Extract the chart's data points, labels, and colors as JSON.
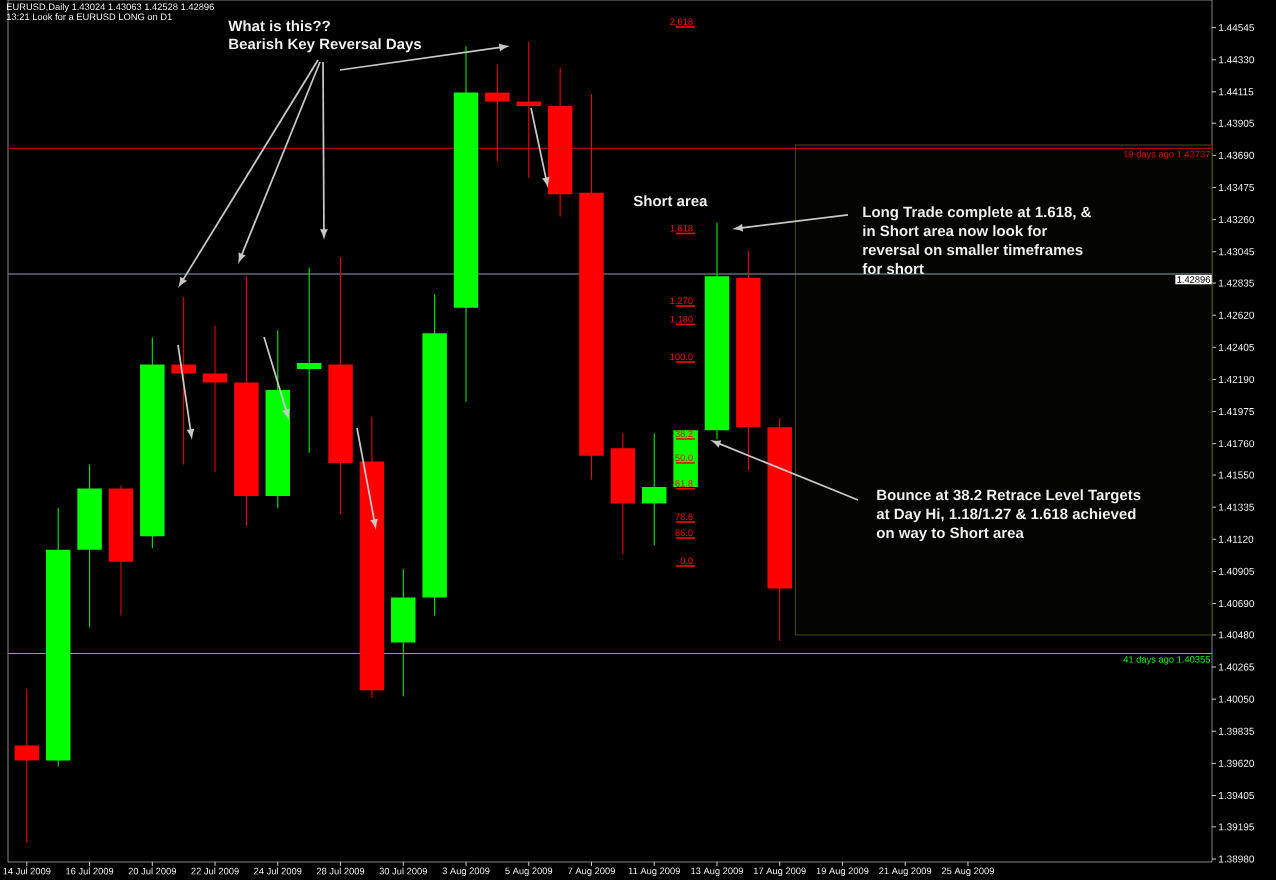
{
  "chart_data": {
    "type": "candlestick",
    "title": "EURUSD,Daily  1.43024 1.43063 1.42528 1.42896",
    "subtitle": "13:21 Look for a EURUSD LONG on D1",
    "categories": [
      "14 Jul 2009",
      null,
      "16 Jul 2009",
      null,
      "20 Jul 2009",
      null,
      "22 Jul 2009",
      null,
      "24 Jul 2009",
      null,
      "28 Jul 2009",
      null,
      "30 Jul 2009",
      null,
      "3 Aug 2009",
      null,
      "5 Aug 2009",
      null,
      "7 Aug 2009",
      null,
      "11 Aug 2009",
      null,
      "13 Aug 2009",
      null,
      "17 Aug 2009",
      null,
      "19 Aug 2009",
      null,
      "21 Aug 2009",
      null,
      "25 Aug 2009",
      null,
      null,
      null,
      null,
      null,
      null,
      null
    ],
    "ohlc": [
      [
        1.3974,
        1.4012,
        1.3909,
        1.3964
      ],
      [
        1.3964,
        1.4133,
        1.396,
        1.4105
      ],
      [
        1.4105,
        1.4162,
        1.4053,
        1.4146
      ],
      [
        1.4146,
        1.4148,
        1.4061,
        1.4097
      ],
      [
        1.4114,
        1.4247,
        1.4106,
        1.4229
      ],
      [
        1.4229,
        1.4274,
        1.4162,
        1.4223
      ],
      [
        1.4223,
        1.4255,
        1.4157,
        1.4217
      ],
      [
        1.4217,
        1.4288,
        1.4121,
        1.4141
      ],
      [
        1.4141,
        1.4252,
        1.4133,
        1.4212
      ],
      [
        1.4226,
        1.4294,
        1.417,
        1.423
      ],
      [
        1.4229,
        1.4301,
        1.4129,
        1.4163
      ],
      [
        1.4164,
        1.4194,
        1.4006,
        1.4011
      ],
      [
        1.4043,
        1.4092,
        1.4007,
        1.4073
      ],
      [
        1.4073,
        1.4276,
        1.4061,
        1.425
      ],
      [
        1.4267,
        1.4442,
        1.4204,
        1.4411
      ],
      [
        1.4411,
        1.443,
        1.4365,
        1.4405
      ],
      [
        1.4405,
        1.4445,
        1.4354,
        1.4402
      ],
      [
        1.4402,
        1.4428,
        1.4328,
        1.4343
      ],
      [
        1.4344,
        1.441,
        1.4152,
        1.4168
      ],
      [
        1.4173,
        1.4183,
        1.4102,
        1.4136
      ],
      [
        1.4136,
        1.4183,
        1.4108,
        1.4147
      ],
      [
        1.4147,
        1.4185,
        1.4147,
        1.4185
      ],
      [
        1.4185,
        1.4324,
        1.4179,
        1.4288
      ],
      [
        1.4287,
        1.4305,
        1.4158,
        1.4187
      ],
      [
        1.4187,
        1.4193,
        1.4044,
        1.4079
      ],
      null,
      null,
      null,
      null,
      null,
      null,
      null,
      null,
      null,
      null,
      null,
      null,
      null
    ],
    "colors": [
      "#ff0000",
      "#00ff00",
      "#00ff00",
      "#ff0000",
      "#00ff00",
      "#ff0000",
      "#ff0000",
      "#ff0000",
      "#00ff00",
      "#00ff00",
      "#ff0000",
      "#ff0000",
      "#00ff00",
      "#00ff00",
      "#00ff00",
      "#ff0000",
      "#ff0000",
      "#ff0000",
      "#ff0000",
      "#ff0000",
      "#00ff00",
      "#00ff00",
      "#00ff00",
      "#ff0000",
      "#ff0000",
      null,
      null,
      null,
      null,
      null,
      null,
      null,
      null,
      null,
      null,
      null,
      null,
      null
    ],
    "ylim": [
      1.3896,
      1.4473
    ],
    "yticks": [
      {
        "value": 1.44545,
        "label": "1.44545"
      },
      {
        "value": 1.4433,
        "label": "1.44330"
      },
      {
        "value": 1.44115,
        "label": "1.44115"
      },
      {
        "value": 1.43905,
        "label": "1.43905"
      },
      {
        "value": 1.4369,
        "label": "1.43690"
      },
      {
        "value": 1.43475,
        "label": "1.43475"
      },
      {
        "value": 1.4326,
        "label": "1.43260"
      },
      {
        "value": 1.43045,
        "label": "1.43045"
      },
      {
        "value": 1.42835,
        "label": "1.42835"
      },
      {
        "value": 1.4262,
        "label": "1.42620"
      },
      {
        "value": 1.42405,
        "label": "1.42405"
      },
      {
        "value": 1.4219,
        "label": "1.42190"
      },
      {
        "value": 1.41975,
        "label": "1.41975"
      },
      {
        "value": 1.4176,
        "label": "1.41760"
      },
      {
        "value": 1.4155,
        "label": "1.41550"
      },
      {
        "value": 1.41335,
        "label": "1.41335"
      },
      {
        "value": 1.4112,
        "label": "1.41120"
      },
      {
        "value": 1.40905,
        "label": "1.40905"
      },
      {
        "value": 1.4069,
        "label": "1.40690"
      },
      {
        "value": 1.4048,
        "label": "1.40480"
      },
      {
        "value": 1.40265,
        "label": "1.40265"
      },
      {
        "value": 1.4005,
        "label": "1.40050"
      },
      {
        "value": 1.39835,
        "label": "1.39835"
      },
      {
        "value": 1.3962,
        "label": "1.39620"
      },
      {
        "value": 1.39405,
        "label": "1.39405"
      },
      {
        "value": 1.39195,
        "label": "1.39195"
      },
      {
        "value": 1.3898,
        "label": "1.38980"
      }
    ],
    "ref_lines": [
      {
        "axis": "y",
        "value": 1.42896,
        "label": "1.42896",
        "color": "#8c9bb0"
      },
      {
        "axis": "y",
        "value": 1.43737,
        "label": "19 days ago 1.43737",
        "color": "#e00000"
      },
      {
        "axis": "y",
        "value": 1.40355,
        "label": "41 days ago 1.40355",
        "color": "#00ff00"
      }
    ],
    "bands": [
      {
        "axis": "y",
        "from": 1.4048,
        "to": 1.4376,
        "color": "#4a4a00"
      }
    ],
    "annotations": [
      "What is this??",
      "Bearish Key Reversal Days",
      "Short area",
      "Long Trade complete at 1.618, & in Short area now look for reversal on smaller timeframes for short",
      "Bounce at 38.2 Retrace Level Targets  at Day Hi, 1.18/1.27 & 1.618 achieved on way to Short area",
      "2.618",
      "1.618",
      "1.270",
      "1.180",
      "100.0",
      "38.2",
      "50.0",
      "61.8",
      "78.6",
      "86.0",
      "0.0"
    ]
  }
}
